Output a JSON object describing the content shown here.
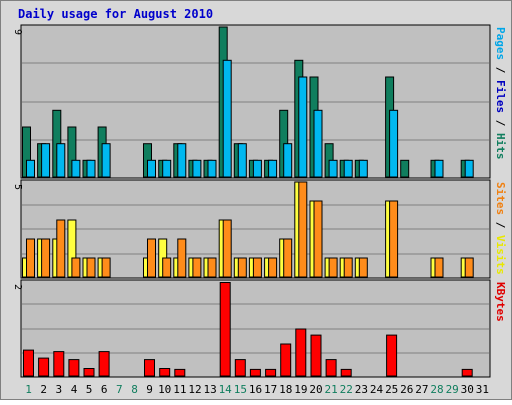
{
  "chart_data": {
    "type": "bar",
    "title": "Daily usage for August 2010",
    "days": [
      "1",
      "2",
      "3",
      "4",
      "5",
      "6",
      "7",
      "8",
      "9",
      "10",
      "11",
      "12",
      "13",
      "14",
      "15",
      "16",
      "17",
      "18",
      "19",
      "20",
      "21",
      "22",
      "23",
      "24",
      "25",
      "26",
      "27",
      "28",
      "29",
      "30",
      "31"
    ],
    "weekend_days": [
      "1",
      "7",
      "8",
      "14",
      "15",
      "21",
      "22",
      "28",
      "29"
    ],
    "panels": [
      {
        "ymax_label": "9",
        "ymax": 9,
        "label_parts": [
          {
            "text": "Pages",
            "color": "#00a6e8"
          },
          {
            "text": " / ",
            "color": "#000000"
          },
          {
            "text": "Files",
            "color": "#0000c0"
          },
          {
            "text": " / ",
            "color": "#000000"
          },
          {
            "text": "Hits",
            "color": "#107e5e"
          }
        ],
        "series": [
          {
            "name": "Hits",
            "color": "#107e5e",
            "values": [
              3,
              2,
              4,
              3,
              1,
              3,
              0,
              0,
              2,
              1,
              2,
              1,
              1,
              9,
              2,
              1,
              1,
              4,
              7,
              6,
              2,
              1,
              1,
              0,
              6,
              1,
              0,
              1,
              0,
              1,
              0
            ]
          },
          {
            "name": "Pages",
            "color": "#00b8f0",
            "values": [
              1,
              2,
              2,
              1,
              1,
              2,
              0,
              0,
              1,
              1,
              2,
              1,
              1,
              7,
              2,
              1,
              1,
              2,
              6,
              4,
              1,
              1,
              1,
              0,
              4,
              0,
              0,
              1,
              0,
              1,
              0
            ]
          }
        ]
      },
      {
        "ymax_label": "5",
        "ymax": 5,
        "label_parts": [
          {
            "text": "Sites",
            "color": "#f08010"
          },
          {
            "text": " / ",
            "color": "#000000"
          },
          {
            "text": "Visits",
            "color": "#e8e800"
          }
        ],
        "series": [
          {
            "name": "Visits",
            "color": "#ffff40",
            "values": [
              1,
              2,
              2,
              3,
              1,
              1,
              0,
              0,
              1,
              2,
              1,
              1,
              1,
              3,
              1,
              1,
              1,
              2,
              5,
              4,
              1,
              1,
              1,
              0,
              4,
              0,
              0,
              1,
              0,
              1,
              0
            ]
          },
          {
            "name": "Sites",
            "color": "#ff8c1a",
            "values": [
              2,
              2,
              3,
              1,
              1,
              1,
              0,
              0,
              2,
              1,
              2,
              1,
              1,
              3,
              1,
              1,
              1,
              2,
              5,
              4,
              1,
              1,
              1,
              0,
              4,
              0,
              0,
              1,
              0,
              1,
              0
            ]
          }
        ]
      },
      {
        "ymax_label": "2",
        "ymax": 2,
        "label_parts": [
          {
            "text": "KBytes",
            "color": "#e00000"
          }
        ],
        "series": [
          {
            "name": "KBytes",
            "color": "#ff0000",
            "values": [
              0.55,
              0.38,
              0.52,
              0.35,
              0.16,
              0.52,
              0,
              0,
              0.35,
              0.16,
              0.14,
              0,
              0,
              1.99,
              0.35,
              0.14,
              0.14,
              0.68,
              1.0,
              0.87,
              0.35,
              0.14,
              0,
              0,
              0.87,
              0,
              0,
              0,
              0,
              0.14,
              0
            ]
          }
        ]
      }
    ],
    "colors": {
      "title": "#0000cc",
      "plot_bg": "#c0c0c0",
      "frame_bg": "#d8d8d8",
      "weekday_label": "#000000",
      "weekend_label": "#107e5e"
    }
  }
}
